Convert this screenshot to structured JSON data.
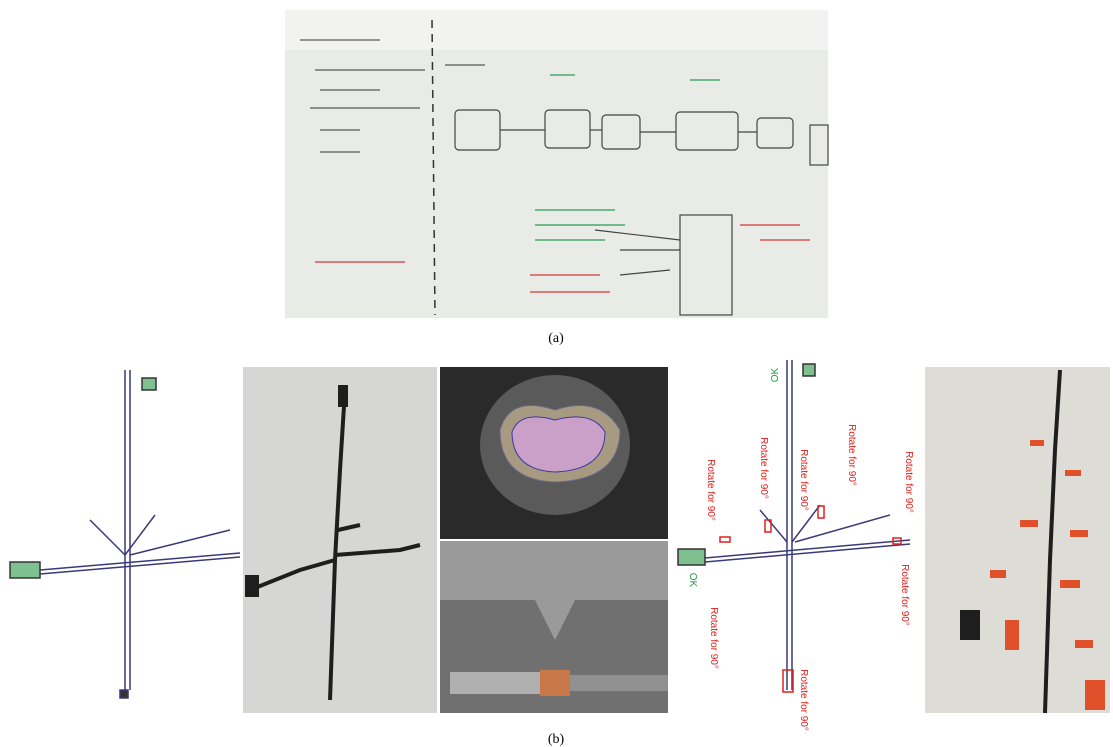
{
  "figure": {
    "panel_a": {
      "label": "(a)"
    },
    "panel_b": {
      "label": "(b)",
      "ok_labels": [
        "OK",
        "OK"
      ],
      "rotate_labels": [
        "Rotate for 90°",
        "Rotate for 90°",
        "Rotate for 90°",
        "Rotate for 90°",
        "Rotate for 90°",
        "Rotate for 90°",
        "Rotate for 90°",
        "Rotate for 90°"
      ]
    }
  }
}
